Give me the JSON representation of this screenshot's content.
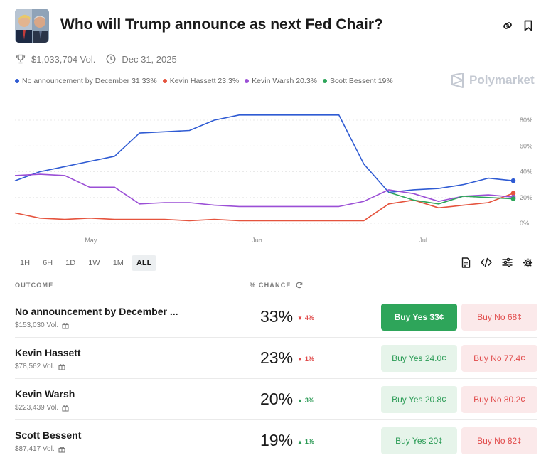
{
  "header": {
    "title": "Who will Trump announce as next Fed Chair?",
    "volume": "$1,033,704 Vol.",
    "end_date": "Dec 31, 2025"
  },
  "brand": {
    "name": "Polymarket"
  },
  "legend": [
    {
      "label": "No announcement by December 31 33%",
      "color": "#2f5bd3"
    },
    {
      "label": "Kevin Hassett 23.3%",
      "color": "#e5533d"
    },
    {
      "label": "Kevin Warsh 20.3%",
      "color": "#9b4fd6"
    },
    {
      "label": "Scott Bessent 19%",
      "color": "#2ea55a"
    }
  ],
  "chart_data": {
    "type": "line",
    "title": "Who will Trump announce as next Fed Chair?",
    "x_ticks": [
      "May",
      "Jun",
      "Jul"
    ],
    "y_ticks": [
      "80%",
      "60%",
      "40%",
      "20%",
      "0%"
    ],
    "ylim": [
      0,
      80
    ],
    "x": [
      0,
      5,
      10,
      15,
      20,
      25,
      30,
      35,
      40,
      45,
      50,
      55,
      60,
      65,
      70,
      75,
      80,
      85,
      90,
      95,
      100
    ],
    "series": [
      {
        "name": "No announcement by December 31",
        "color": "#2f5bd3",
        "values": [
          33,
          40,
          44,
          48,
          52,
          70,
          71,
          72,
          80,
          84,
          84,
          84,
          84,
          84,
          46,
          24,
          26,
          27,
          30,
          35,
          33
        ]
      },
      {
        "name": "Kevin Hassett",
        "color": "#e5533d",
        "values": [
          8,
          4,
          3,
          4,
          3,
          3,
          3,
          2,
          3,
          2,
          2,
          2,
          2,
          2,
          2,
          15,
          18,
          12,
          14,
          16,
          23.3
        ]
      },
      {
        "name": "Kevin Warsh",
        "color": "#9b4fd6",
        "values": [
          37,
          38,
          37,
          28,
          28,
          15,
          16,
          16,
          14,
          13,
          13,
          13,
          13,
          13,
          17,
          26,
          23,
          17,
          21,
          22,
          20.3
        ]
      },
      {
        "name": "Scott Bessent",
        "color": "#2ea55a",
        "values": [
          null,
          null,
          null,
          null,
          null,
          null,
          null,
          null,
          null,
          null,
          null,
          null,
          null,
          null,
          null,
          24,
          18,
          15,
          21,
          20,
          19
        ]
      }
    ]
  },
  "timeframes": [
    {
      "label": "1H",
      "active": false
    },
    {
      "label": "6H",
      "active": false
    },
    {
      "label": "1D",
      "active": false
    },
    {
      "label": "1W",
      "active": false
    },
    {
      "label": "1M",
      "active": false
    },
    {
      "label": "ALL",
      "active": true
    }
  ],
  "table": {
    "outcome_header": "OUTCOME",
    "chance_header": "% CHANCE",
    "rows": [
      {
        "name": "No announcement by December ...",
        "volume": "$153,030 Vol.",
        "chance": "33%",
        "change": "4%",
        "direction": "down",
        "buy_yes": "Buy Yes 33¢",
        "buy_no": "Buy No 68¢",
        "selected": true
      },
      {
        "name": "Kevin Hassett",
        "volume": "$78,562 Vol.",
        "chance": "23%",
        "change": "1%",
        "direction": "down",
        "buy_yes": "Buy Yes 24.0¢",
        "buy_no": "Buy No 77.4¢",
        "selected": false
      },
      {
        "name": "Kevin Warsh",
        "volume": "$223,439 Vol.",
        "chance": "20%",
        "change": "3%",
        "direction": "up",
        "buy_yes": "Buy Yes 20.8¢",
        "buy_no": "Buy No 80.2¢",
        "selected": false
      },
      {
        "name": "Scott Bessent",
        "volume": "$87,417 Vol.",
        "chance": "19%",
        "change": "1%",
        "direction": "up",
        "buy_yes": "Buy Yes 20¢",
        "buy_no": "Buy No 82¢",
        "selected": false
      }
    ]
  }
}
